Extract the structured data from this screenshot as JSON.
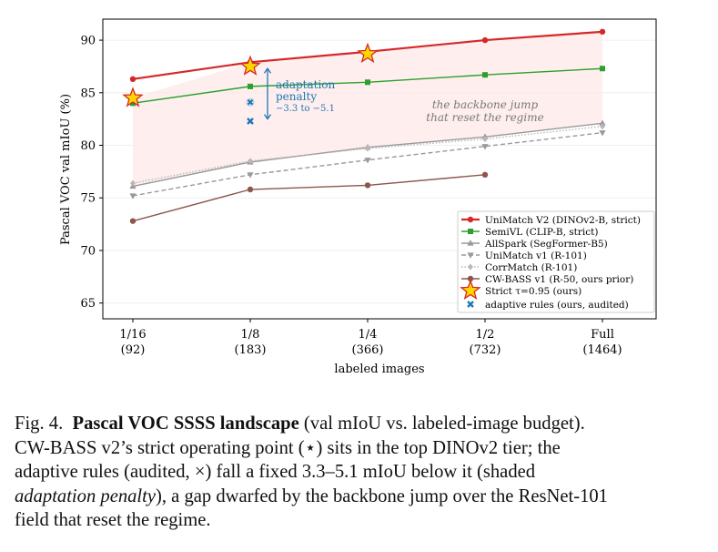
{
  "chart_data": {
    "type": "line",
    "ylabel": "Pascal VOC val mIoU (%)",
    "xlabel": "labeled images",
    "x_ticks": [
      {
        "fraction": "1/16",
        "count": "(92)"
      },
      {
        "fraction": "1/8",
        "count": "(183)"
      },
      {
        "fraction": "1/4",
        "count": "(366)"
      },
      {
        "fraction": "1/2",
        "count": "(732)"
      },
      {
        "fraction": "Full",
        "count": "(1464)"
      }
    ],
    "y_ticks": [
      "65",
      "70",
      "75",
      "80",
      "85",
      "90"
    ],
    "ylim": [
      63.5,
      92
    ],
    "grid": true,
    "legend_position": "lower right",
    "series": [
      {
        "name": "UniMatch V2 (DINOv2-B, strict)",
        "color": "#d62728",
        "style": "solid-thick",
        "marker": "circle",
        "points": [
          [
            0,
            86.3
          ],
          [
            1,
            87.9
          ],
          [
            2,
            88.9
          ],
          [
            3,
            90.0
          ],
          [
            4,
            90.8
          ]
        ]
      },
      {
        "name": "SemiVL (CLIP-B, strict)",
        "color": "#2ca02c",
        "style": "solid",
        "marker": "square",
        "points": [
          [
            0,
            84.0
          ],
          [
            1,
            85.6
          ],
          [
            2,
            86.0
          ],
          [
            3,
            86.7
          ],
          [
            4,
            87.3
          ]
        ]
      },
      {
        "name": "AllSpark (SegFormer-B5)",
        "color": "#999999",
        "style": "solid",
        "marker": "triangle-up",
        "points": [
          [
            0,
            76.1
          ],
          [
            1,
            78.4
          ],
          [
            2,
            79.8
          ],
          [
            3,
            80.8
          ],
          [
            4,
            82.1
          ]
        ]
      },
      {
        "name": "UniMatch v1 (R-101)",
        "color": "#999999",
        "style": "dashed",
        "marker": "triangle-down",
        "points": [
          [
            0,
            75.2
          ],
          [
            1,
            77.2
          ],
          [
            2,
            78.6
          ],
          [
            3,
            79.9
          ],
          [
            4,
            81.2
          ]
        ]
      },
      {
        "name": "CorrMatch (R-101)",
        "color": "#b8b8b8",
        "style": "dotted",
        "marker": "diamond",
        "points": [
          [
            0,
            76.4
          ],
          [
            1,
            78.5
          ],
          [
            2,
            79.7
          ],
          [
            3,
            80.6
          ],
          [
            4,
            81.8
          ]
        ]
      },
      {
        "name": "CW-BASS v1 (R-50, ours prior)",
        "color": "#8c564b",
        "style": "solid",
        "marker": "circle",
        "points": [
          [
            0,
            72.8
          ],
          [
            1,
            75.8
          ],
          [
            2,
            76.2
          ],
          [
            3,
            77.2
          ]
        ]
      },
      {
        "name": "Strict τ=0.95 (ours)",
        "color": "#ffd700",
        "style": "none",
        "marker": "star",
        "points": [
          [
            0,
            84.5
          ],
          [
            1,
            87.5
          ],
          [
            2,
            88.7
          ]
        ]
      },
      {
        "name": "adaptive rules (ours, audited)",
        "color": "#1f77b4",
        "style": "none",
        "marker": "x",
        "points": [
          [
            1,
            84.1
          ],
          [
            1,
            82.3
          ]
        ]
      }
    ],
    "shaded_band": {
      "between": [
        "Strict τ=0.95 (ours)",
        "AllSpark (SegFormer-B5)"
      ],
      "color": "#fde8e8"
    },
    "annotations": {
      "penalty_arrow": {
        "x": 1.17,
        "y_from": 87.3,
        "y_to": 82.5,
        "color": "#1f77b4"
      },
      "penalty_label": [
        "adaptation",
        "penalty",
        "−3.3 to −5.1"
      ],
      "backbone_label": [
        "the backbone jump",
        "that reset the regime"
      ]
    }
  },
  "caption": {
    "label": "Fig. 4.",
    "title": "Pascal VOC SSSS landscape",
    "line1_rest": " (val mIoU vs. labeled-image budget).",
    "line2": "CW-BASS v2’s strict operating point (⋆) sits in the top DINOv2 tier; the",
    "line3": "adaptive rules (audited, ×) fall a fixed 3.3–5.1 mIoU below it (shaded",
    "line4_em": "adaptation penalty",
    "line4_rest": "), a gap dwarfed by the backbone jump over the ResNet-101",
    "line5": "field that reset the regime."
  }
}
